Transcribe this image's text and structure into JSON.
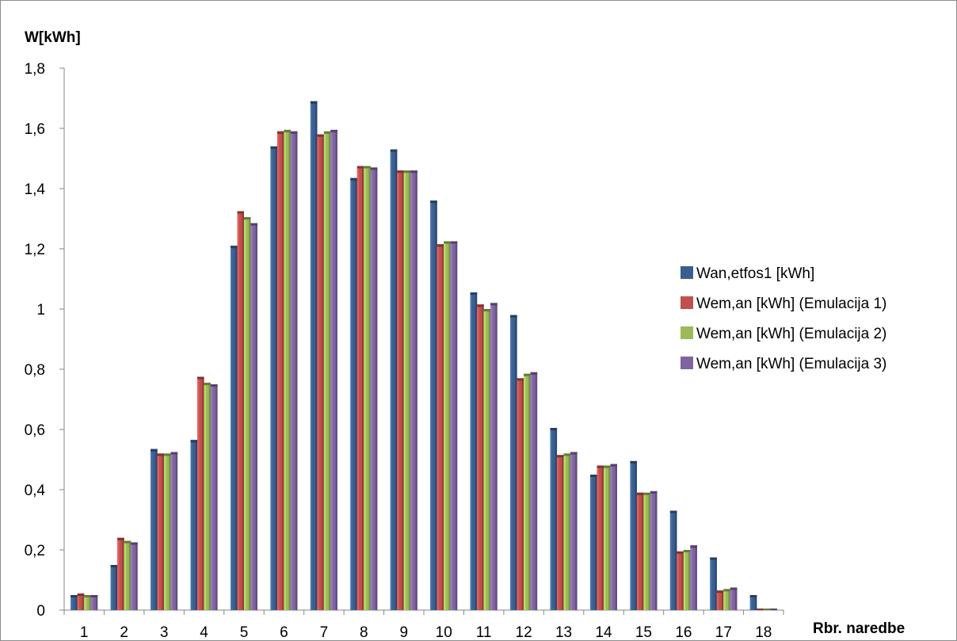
{
  "chart_data": {
    "type": "bar",
    "title": "",
    "ylabel": "W[kWh]",
    "xlabel": "Rbr. naredbe",
    "categories": [
      "1",
      "2",
      "3",
      "4",
      "5",
      "6",
      "7",
      "8",
      "9",
      "10",
      "11",
      "12",
      "13",
      "14",
      "15",
      "16",
      "17",
      "18"
    ],
    "ylim": [
      0,
      1.8
    ],
    "yticks": [
      0,
      0.2,
      0.4,
      0.6,
      0.8,
      1,
      1.2,
      1.4,
      1.6,
      1.8
    ],
    "ytick_labels": [
      "0",
      "0,2",
      "0,4",
      "0,6",
      "0,8",
      "1",
      "1,2",
      "1,4",
      "1,6",
      "1,8"
    ],
    "grid": false,
    "legend_position": "right",
    "series": [
      {
        "name": "Wan,etfos1 [kWh]",
        "color": "#3a5f8f",
        "values": [
          0.05,
          0.15,
          0.535,
          0.565,
          1.21,
          1.54,
          1.69,
          1.435,
          1.53,
          1.36,
          1.055,
          0.98,
          0.605,
          0.45,
          0.495,
          0.33,
          0.175,
          0.05
        ]
      },
      {
        "name": "Wem,an [kWh] (Emulacija 1)",
        "color": "#c0504d",
        "values": [
          0.055,
          0.24,
          0.52,
          0.775,
          1.325,
          1.59,
          1.58,
          1.475,
          1.46,
          1.215,
          1.015,
          0.77,
          0.515,
          0.48,
          0.39,
          0.195,
          0.065,
          0.005
        ]
      },
      {
        "name": "Wem,an [kWh] (Emulacija 2)",
        "color": "#9bbb59",
        "values": [
          0.05,
          0.23,
          0.52,
          0.755,
          1.305,
          1.595,
          1.59,
          1.475,
          1.46,
          1.225,
          1.0,
          0.785,
          0.52,
          0.48,
          0.39,
          0.2,
          0.07,
          0.005
        ]
      },
      {
        "name": "Wem,an [kWh] (Emulacija 3)",
        "color": "#8064a2",
        "values": [
          0.05,
          0.225,
          0.525,
          0.75,
          1.285,
          1.59,
          1.595,
          1.47,
          1.46,
          1.225,
          1.02,
          0.79,
          0.525,
          0.485,
          0.395,
          0.215,
          0.075,
          0.005
        ]
      }
    ]
  }
}
